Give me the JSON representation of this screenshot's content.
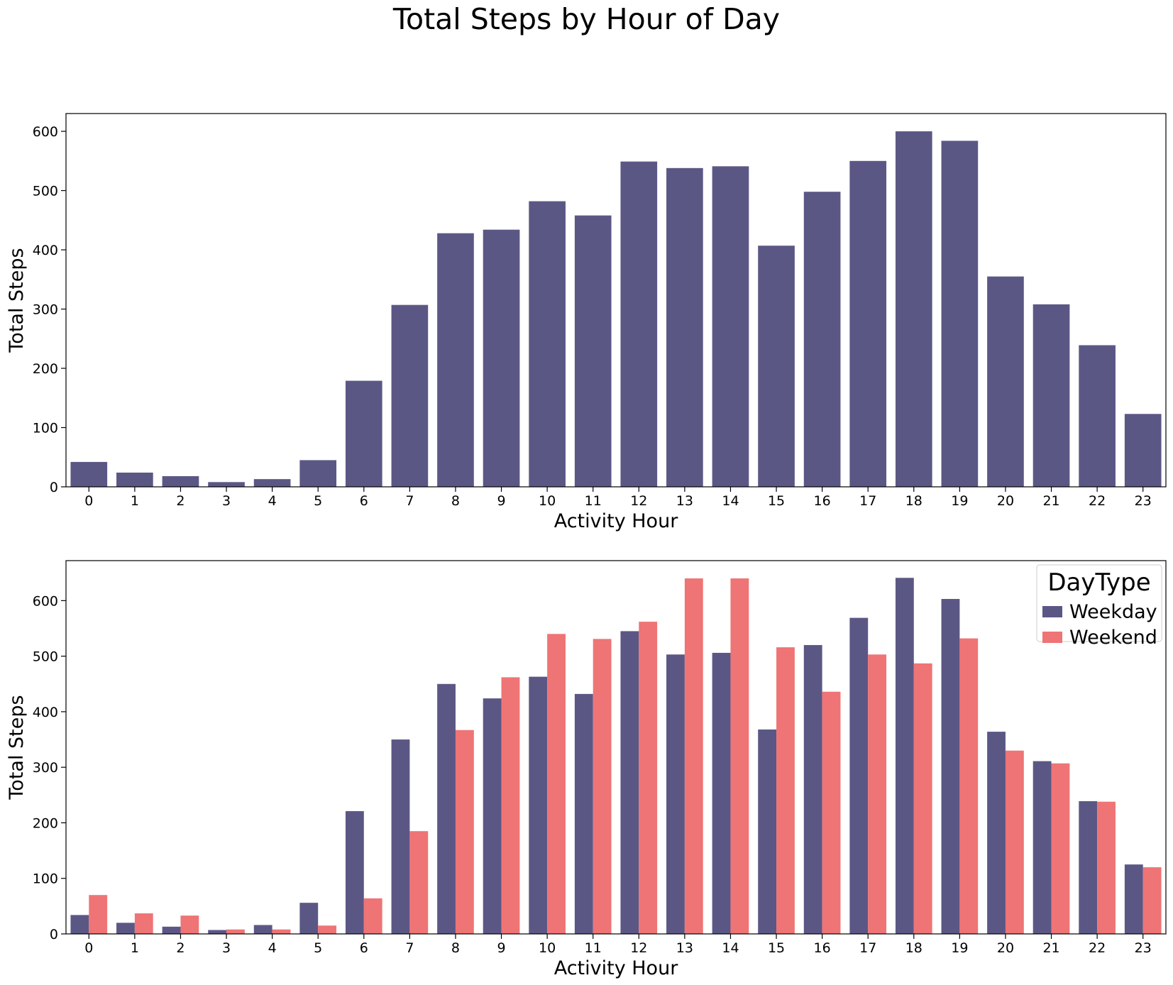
{
  "suptitle": "Total Steps by Hour of Day",
  "colors": {
    "weekday": "#5b5785",
    "weekend": "#ef7475"
  },
  "chart_data": [
    {
      "type": "bar",
      "xlabel": "Activity Hour",
      "ylabel": "Total Steps",
      "categories": [
        "0",
        "1",
        "2",
        "3",
        "4",
        "5",
        "6",
        "7",
        "8",
        "9",
        "10",
        "11",
        "12",
        "13",
        "14",
        "15",
        "16",
        "17",
        "18",
        "19",
        "20",
        "21",
        "22",
        "23"
      ],
      "ylim": [
        0,
        630
      ],
      "yticks": [
        0,
        100,
        200,
        300,
        400,
        500,
        600
      ],
      "series": [
        {
          "color": "#5b5785",
          "values": [
            42,
            24,
            18,
            8,
            13,
            45,
            179,
            307,
            428,
            434,
            482,
            458,
            549,
            538,
            541,
            407,
            498,
            550,
            600,
            584,
            355,
            308,
            239,
            123
          ]
        }
      ],
      "grid": false
    },
    {
      "type": "bar",
      "xlabel": "Activity Hour",
      "ylabel": "Total Steps",
      "categories": [
        "0",
        "1",
        "2",
        "3",
        "4",
        "5",
        "6",
        "7",
        "8",
        "9",
        "10",
        "11",
        "12",
        "13",
        "14",
        "15",
        "16",
        "17",
        "18",
        "19",
        "20",
        "21",
        "22",
        "23"
      ],
      "ylim": [
        0,
        672
      ],
      "yticks": [
        0,
        100,
        200,
        300,
        400,
        500,
        600
      ],
      "legend": {
        "title": "DayType",
        "position": "top-right"
      },
      "series": [
        {
          "name": "Weekday",
          "color": "#5b5785",
          "values": [
            34,
            20,
            13,
            7,
            16,
            56,
            221,
            350,
            450,
            424,
            463,
            432,
            545,
            503,
            506,
            368,
            520,
            569,
            641,
            603,
            364,
            311,
            239,
            125
          ]
        },
        {
          "name": "Weekend",
          "color": "#ef7475",
          "values": [
            70,
            37,
            33,
            8,
            8,
            15,
            64,
            185,
            367,
            462,
            540,
            531,
            562,
            640,
            640,
            516,
            436,
            503,
            487,
            532,
            330,
            307,
            238,
            120
          ]
        }
      ],
      "grid": false
    }
  ]
}
